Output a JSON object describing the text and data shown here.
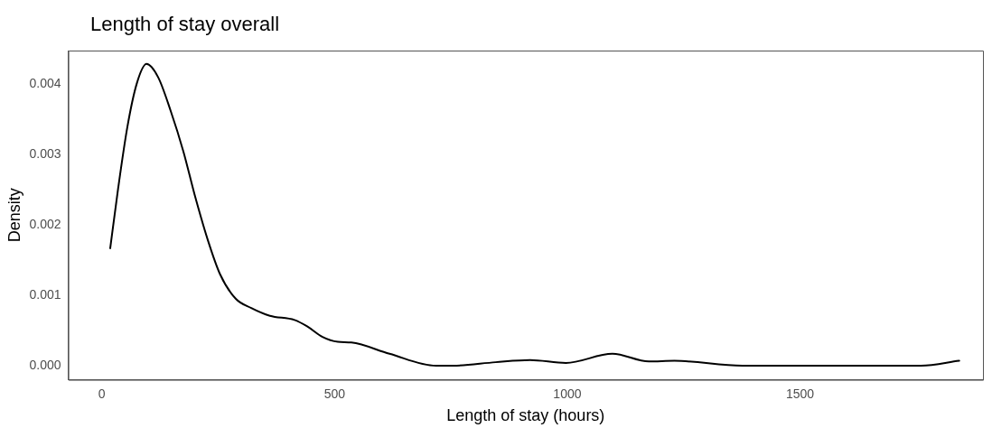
{
  "chart_data": {
    "type": "line",
    "title": "Length of stay overall",
    "xlabel": "Length of stay (hours)",
    "ylabel": "Density",
    "x": [
      18,
      35,
      55,
      75,
      96,
      121,
      148,
      175,
      201,
      228,
      254,
      288,
      321,
      361,
      414,
      441,
      474,
      507,
      536,
      618,
      718,
      755,
      846,
      920,
      997,
      1097,
      1175,
      1230,
      1376,
      1760,
      1842
    ],
    "series": [
      {
        "color": "#000000",
        "values": [
          0.00167,
          0.00252,
          0.0034,
          0.00401,
          0.00429,
          0.0041,
          0.00362,
          0.00305,
          0.00239,
          0.00178,
          0.0013,
          0.00095,
          0.00082,
          0.00071,
          0.00065,
          0.00056,
          0.00041,
          0.00034,
          0.00033,
          0.00017,
          0,
          0,
          5e-05,
          8e-05,
          4e-05,
          0.00017,
          6e-05,
          7e-05,
          0,
          0,
          7e-05
        ]
      }
    ],
    "xlim": [
      -72,
      1893
    ],
    "ylim": [
      -0.0002,
      0.00448
    ],
    "xticks": [
      0,
      500,
      1000,
      1500
    ],
    "yticks": [
      {
        "value": 0,
        "label": "0.000"
      },
      {
        "value": 0.001,
        "label": "0.001"
      },
      {
        "value": 0.002,
        "label": "0.002"
      },
      {
        "value": 0.003,
        "label": "0.003"
      },
      {
        "value": 0.004,
        "label": "0.004"
      }
    ],
    "grid": false,
    "legend": false,
    "marker": "none",
    "line_style": "solid"
  }
}
